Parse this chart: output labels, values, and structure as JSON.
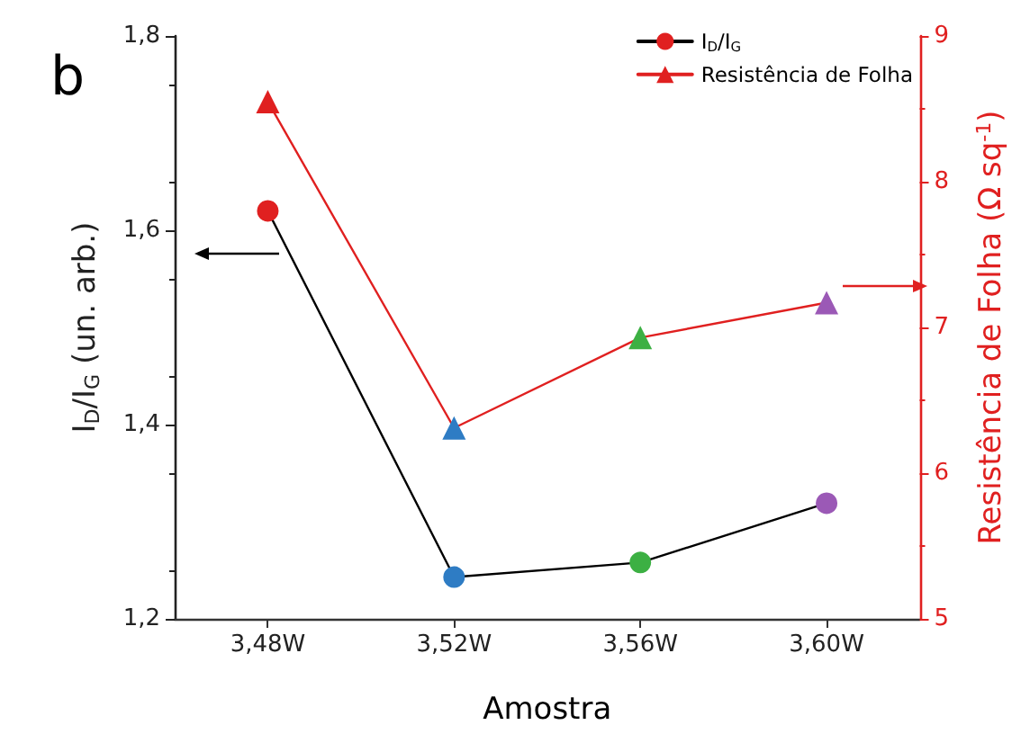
{
  "chart_data": {
    "type": "line",
    "xlabel": "Amostra",
    "ylabel": "I$_{D}$/I$_{G}$ (un. arb.)",
    "y2label": "Resistência de Folha (Ω sq$^{-1}$)",
    "categories": [
      "3,48W",
      "3,52W",
      "3,56W",
      "3,60W"
    ],
    "series": [
      {
        "name": "I$_{D}$/I$_{G}$",
        "color": "#000000",
        "colors": [
          "#e02020",
          "#2e7cc4",
          "#3cb043",
          "#9b59b6"
        ],
        "marker": "circle",
        "values": [
          1.62,
          1.243,
          1.258,
          1.319
        ]
      },
      {
        "name": "Resistência de Folha",
        "color": "#e02020",
        "colors": [
          "#e02020",
          "#2e7cc4",
          "#3cb043",
          "#9b59b6"
        ],
        "marker": "triangle",
        "axis": "y2",
        "values": [
          8.55,
          6.31,
          6.93,
          7.17
        ]
      }
    ],
    "ylim": [
      1.2,
      1.8
    ],
    "yticks": [
      {
        "value": 1.2,
        "label": "1,2"
      },
      {
        "value": 1.4,
        "label": "1,4"
      },
      {
        "value": 1.6,
        "label": "1,6"
      },
      {
        "value": 1.8,
        "label": "1,8"
      }
    ],
    "y2lim": [
      5,
      9
    ],
    "y2ticks": [
      5,
      6,
      7,
      8,
      9
    ],
    "annotations": [
      "b"
    ],
    "grid": false,
    "legend": "top right",
    "line_style": "solid"
  }
}
